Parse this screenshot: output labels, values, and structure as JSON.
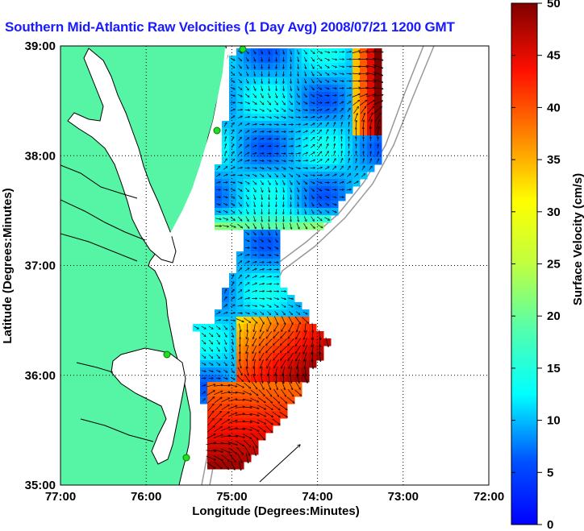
{
  "title": "Southern Mid-Atlantic Raw Velocities (1 Day Avg) 2008/07/21 1200 GMT",
  "map": {
    "xlabel": "Longitude (Degrees:Minutes)",
    "ylabel": "Latitude (Degrees:Minutes)",
    "x_ticks": [
      "77:00",
      "76:00",
      "75:00",
      "74:00",
      "73:00",
      "72:00"
    ],
    "y_ticks": [
      "39:00",
      "38:00",
      "37:00",
      "36:00",
      "35:00"
    ],
    "lon_range": [
      -77,
      -72
    ],
    "lat_range": [
      35,
      39
    ],
    "land_color": "#55f5a5",
    "grid": true
  },
  "colorbar": {
    "label": "Surface Velocity (cm/s)",
    "ticks": [
      "0",
      "5",
      "10",
      "15",
      "20",
      "25",
      "30",
      "35",
      "40",
      "45",
      "50"
    ],
    "range": [
      0,
      50
    ],
    "colormap": "jet"
  }
}
